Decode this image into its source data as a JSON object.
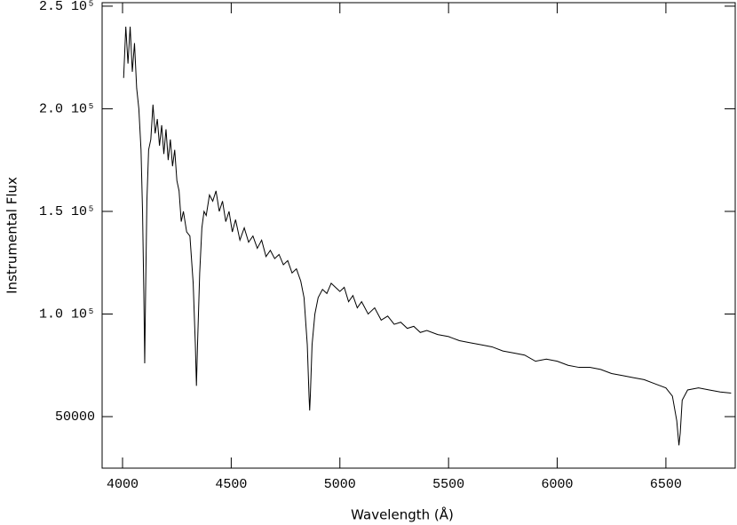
{
  "chart_data": {
    "type": "line",
    "xlabel": "Wavelength (Å)",
    "ylabel": "Instrumental Flux",
    "color": "#000000",
    "xlim": [
      3906,
      6819
    ],
    "ylim": [
      24900,
      251700
    ],
    "xticks": [
      4000,
      4500,
      5000,
      5500,
      6000,
      6500
    ],
    "yticks": [
      50000,
      {
        "value": 100000,
        "label": "1.0 10⁵"
      },
      {
        "value": 150000,
        "label": "1.5 10⁵"
      },
      {
        "value": 200000,
        "label": "2.0 10⁵"
      },
      {
        "value": 250000,
        "label": "2.5 10⁵"
      }
    ],
    "x": [
      4005,
      4015,
      4025,
      4035,
      4045,
      4055,
      4065,
      4075,
      4085,
      4092,
      4098,
      4102,
      4106,
      4112,
      4120,
      4130,
      4140,
      4150,
      4160,
      4170,
      4180,
      4190,
      4200,
      4210,
      4220,
      4230,
      4240,
      4250,
      4260,
      4270,
      4280,
      4295,
      4310,
      4325,
      4335,
      4340,
      4345,
      4355,
      4365,
      4375,
      4385,
      4400,
      4415,
      4430,
      4445,
      4460,
      4475,
      4490,
      4505,
      4520,
      4540,
      4560,
      4580,
      4600,
      4620,
      4640,
      4660,
      4680,
      4700,
      4720,
      4740,
      4760,
      4780,
      4800,
      4820,
      4835,
      4850,
      4858,
      4861,
      4864,
      4872,
      4885,
      4900,
      4920,
      4940,
      4960,
      4980,
      5000,
      5020,
      5040,
      5060,
      5080,
      5100,
      5130,
      5160,
      5190,
      5220,
      5250,
      5280,
      5310,
      5340,
      5370,
      5400,
      5450,
      5500,
      5550,
      5600,
      5650,
      5700,
      5750,
      5800,
      5850,
      5900,
      5950,
      6000,
      6050,
      6100,
      6150,
      6200,
      6250,
      6300,
      6350,
      6400,
      6450,
      6500,
      6530,
      6550,
      6560,
      6566,
      6575,
      6600,
      6650,
      6700,
      6750,
      6800
    ],
    "values": [
      215000,
      240000,
      222000,
      240000,
      218000,
      232000,
      210000,
      200000,
      180000,
      150000,
      110000,
      76000,
      110000,
      155000,
      180000,
      185000,
      202000,
      188000,
      195000,
      182000,
      192000,
      178000,
      190000,
      175000,
      185000,
      172000,
      180000,
      165000,
      160000,
      145000,
      150000,
      140000,
      138000,
      115000,
      85000,
      65000,
      85000,
      120000,
      142000,
      150000,
      148000,
      158000,
      155000,
      160000,
      150000,
      155000,
      145000,
      150000,
      140000,
      146000,
      136000,
      142000,
      135000,
      138000,
      132000,
      136000,
      128000,
      131000,
      127000,
      129000,
      124000,
      126000,
      120000,
      122000,
      116000,
      108000,
      85000,
      60000,
      53000,
      60000,
      85000,
      100000,
      108000,
      112000,
      110000,
      115000,
      113000,
      111000,
      113000,
      106000,
      109000,
      103000,
      106000,
      100000,
      103000,
      97000,
      99000,
      95000,
      96000,
      93000,
      94000,
      91000,
      92000,
      90000,
      89000,
      87000,
      86000,
      85000,
      84000,
      82000,
      81000,
      80000,
      77000,
      78000,
      77000,
      75000,
      74000,
      74000,
      73000,
      71000,
      70000,
      69000,
      68000,
      66000,
      64000,
      60000,
      48000,
      36000,
      42000,
      58000,
      63000,
      64000,
      63000,
      62000,
      61500
    ]
  }
}
